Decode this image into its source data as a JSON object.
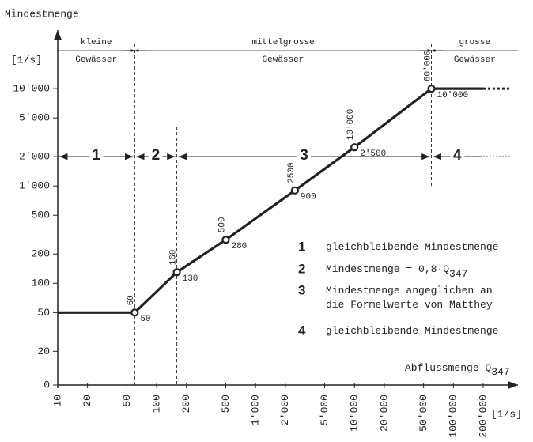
{
  "chart_data": {
    "type": "line",
    "y_label": "Mindestmenge",
    "y_unit": "[1/s]",
    "x_label": "Abflussmenge Q",
    "x_label_sub": "347",
    "x_unit": "[1/s]",
    "xscale": "log",
    "yscale": "log",
    "xlim": [
      10,
      450000
    ],
    "ylim": [
      9,
      40000
    ],
    "xticks": [
      10,
      20,
      50,
      100,
      200,
      500,
      {
        "value": 1000,
        "label": "1'000"
      },
      {
        "value": 2000,
        "label": "2'000"
      },
      {
        "value": 5000,
        "label": "5'000"
      },
      {
        "value": 10000,
        "label": "10'000"
      },
      {
        "value": 20000,
        "label": "20'000"
      },
      {
        "value": 50000,
        "label": "50'000"
      },
      {
        "value": 100000,
        "label": "100'000"
      },
      {
        "value": 200000,
        "label": "200'000"
      }
    ],
    "yticks": [
      0,
      20,
      50,
      100,
      200,
      500,
      {
        "value": 1000,
        "label": "1'000"
      },
      {
        "value": 2000,
        "label": "2'000"
      },
      {
        "value": 5000,
        "label": "5'000"
      },
      {
        "value": 10000,
        "label": "10'000"
      }
    ],
    "series": [
      {
        "name": "Mindestmenge",
        "color": "#222222",
        "x": [
          10,
          60,
          160,
          500,
          2500,
          10000,
          60000,
          200000
        ],
        "values": [
          50,
          50,
          130,
          280,
          900,
          2500,
          10000,
          10000
        ],
        "x_labels": [
          null,
          "60",
          "160",
          "500",
          "2500",
          "10'000",
          "60'000",
          null
        ],
        "value_labels": [
          null,
          "50",
          "130",
          "280",
          "900",
          "2'500",
          "10'000",
          null
        ]
      }
    ],
    "size_classes": {
      "boundaries": [
        60,
        60000
      ],
      "labels": [
        [
          "kleine",
          "Gewässer"
        ],
        [
          "mittelgrosse",
          "Gewässer"
        ],
        [
          "grosse",
          "Gewässer"
        ]
      ]
    },
    "zones": {
      "level": 2000,
      "boundaries": [
        60,
        160,
        60000
      ],
      "end": 200000,
      "labels": [
        "1",
        "2",
        "3",
        "4"
      ]
    },
    "legend": [
      {
        "number": "1",
        "lines": [
          "gleichbleibende Mindestmenge"
        ]
      },
      {
        "number": "2",
        "lines": [
          "Mindestmenge = 0,8·Q"
        ],
        "sub": "347"
      },
      {
        "number": "3",
        "lines": [
          "Mindestmenge angeglichen an",
          "die Formelwerte von Matthey"
        ]
      },
      {
        "number": "4",
        "lines": [
          "gleichbleibende Mindestmenge"
        ]
      }
    ]
  }
}
